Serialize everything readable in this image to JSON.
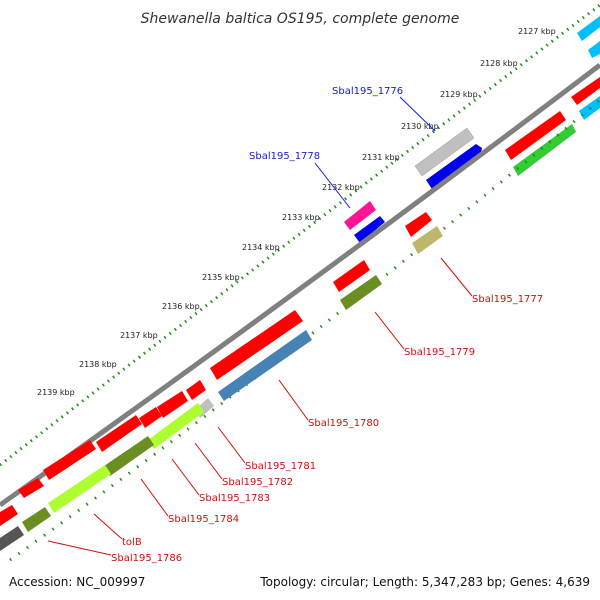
{
  "map_title": "Shewanella baltica OS195, complete genome",
  "footer": {
    "accession": "Accession: NC_009997",
    "summary": "Topology: circular; Length: 5,347,283 bp; Genes: 4,639"
  },
  "ticks": [
    "2127 kbp",
    "2128 kbp",
    "2129 kbp",
    "2130 kbp",
    "2131 kbp",
    "2132 kbp",
    "2133 kbp",
    "2134 kbp",
    "2135 kbp",
    "2136 kbp",
    "2137 kbp",
    "2138 kbp",
    "2139 kbp"
  ],
  "gene_labels": {
    "sbal1776": "Sbal195_1776",
    "sbal1778": "Sbal195_1778",
    "sbal1777": "Sbal195_1777",
    "sbal1779": "Sbal195_1779",
    "sbal1780": "Sbal195_1780",
    "sbal1781": "Sbal195_1781",
    "sbal1782": "Sbal195_1782",
    "sbal1783": "Sbal195_1783",
    "sbal1784": "Sbal195_1784",
    "tolB": "tolB",
    "sbal1786": "Sbal195_1786"
  },
  "colors": {
    "backbone": "#808080",
    "cog_red": "#ff0000",
    "cog_blue": "#0000ee",
    "cog_green": "#33cc33",
    "cog_olive": "#6b8e23",
    "cog_lime": "#adff2f",
    "cog_steel": "#4682b4",
    "cog_silver": "#c0c0c0",
    "cog_pink": "#ff1493",
    "cog_khaki": "#bdb76b",
    "cog_cyan": "#00bfff",
    "cog_dark": "#555555",
    "label_blue": "#1a1acc",
    "label_red": "#cc1111",
    "tick_green": "#228b22"
  }
}
